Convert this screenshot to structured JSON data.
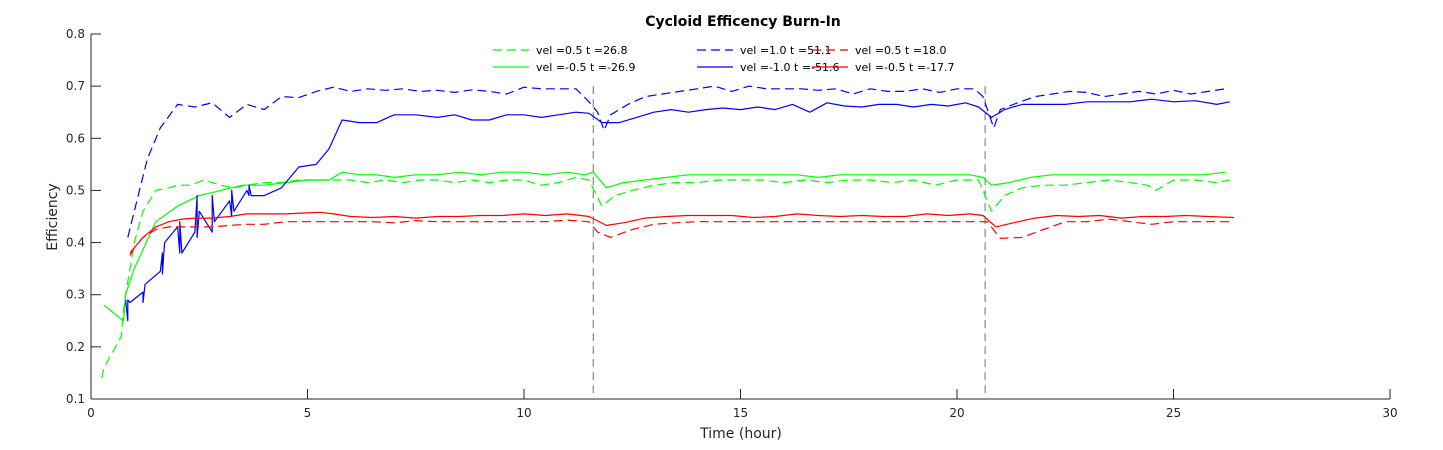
{
  "chart_data": {
    "type": "line",
    "title": "Cycloid Efficency Burn-In",
    "xlabel": "Time (hour)",
    "ylabel": "Efficiency",
    "xlim": [
      0,
      30
    ],
    "ylim": [
      0.1,
      0.8
    ],
    "xticks": [
      0,
      5,
      10,
      15,
      20,
      25,
      30
    ],
    "yticks": [
      0.1,
      0.2,
      0.3,
      0.4,
      0.5,
      0.6,
      0.7,
      0.8
    ],
    "xtick_labels": [
      "0",
      "5",
      "10",
      "15",
      "20",
      "25",
      "30"
    ],
    "ytick_labels": [
      "0.1",
      "0.2",
      "0.3",
      "0.4",
      "0.5",
      "0.6",
      "0.7",
      "0.8"
    ],
    "grid": false,
    "legend_position": "top-center",
    "vlines": [
      11.6,
      20.65
    ],
    "series": [
      {
        "name": "vel =0.5 t =26.8",
        "color": "#00ff00",
        "dash": "dashed",
        "x": [
          0.25,
          0.3,
          0.5,
          0.7,
          0.75,
          0.8,
          0.9,
          1.0,
          1.2,
          1.5,
          1.8,
          2.0,
          2.3,
          2.6,
          2.8,
          3.0,
          3.3,
          3.6,
          4.0,
          4.4,
          4.8,
          5.2,
          5.6,
          6.0,
          6.4,
          6.8,
          7.2,
          7.6,
          8.0,
          8.4,
          8.8,
          9.2,
          9.6,
          10.0,
          10.4,
          10.8,
          11.2,
          11.5,
          11.8,
          12.1,
          12.5,
          13.0,
          13.5,
          14.0,
          14.5,
          15.0,
          15.5,
          16.0,
          16.5,
          17.0,
          17.5,
          18.0,
          18.5,
          19.0,
          19.5,
          20.0,
          20.5,
          20.8,
          21.1,
          21.5,
          22.0,
          22.5,
          23.0,
          23.5,
          24.0,
          24.4,
          24.6,
          25.0,
          25.5,
          26.0,
          26.3
        ],
        "y": [
          0.14,
          0.16,
          0.19,
          0.22,
          0.27,
          0.3,
          0.35,
          0.4,
          0.46,
          0.5,
          0.505,
          0.51,
          0.51,
          0.52,
          0.515,
          0.51,
          0.505,
          0.51,
          0.515,
          0.515,
          0.52,
          0.52,
          0.52,
          0.52,
          0.515,
          0.52,
          0.515,
          0.52,
          0.52,
          0.515,
          0.52,
          0.515,
          0.52,
          0.52,
          0.51,
          0.515,
          0.525,
          0.52,
          0.47,
          0.49,
          0.5,
          0.51,
          0.515,
          0.515,
          0.52,
          0.52,
          0.52,
          0.515,
          0.52,
          0.515,
          0.52,
          0.52,
          0.515,
          0.52,
          0.51,
          0.52,
          0.52,
          0.46,
          0.49,
          0.505,
          0.51,
          0.51,
          0.515,
          0.52,
          0.515,
          0.51,
          0.5,
          0.52,
          0.52,
          0.515,
          0.52
        ]
      },
      {
        "name": "vel =-0.5 t =-26.9",
        "color": "#00ff00",
        "dash": "solid",
        "x": [
          0.3,
          0.75,
          0.8,
          1.0,
          1.5,
          2.0,
          2.5,
          3.0,
          3.5,
          4.0,
          4.5,
          5.0,
          5.5,
          5.8,
          6.2,
          6.6,
          7.0,
          7.5,
          8.0,
          8.5,
          9.0,
          9.5,
          10.0,
          10.5,
          11.0,
          11.4,
          11.6,
          11.9,
          12.3,
          12.8,
          13.3,
          13.8,
          14.3,
          14.8,
          15.3,
          15.8,
          16.3,
          16.8,
          17.3,
          17.8,
          18.3,
          18.8,
          19.3,
          19.8,
          20.3,
          20.6,
          20.8,
          21.2,
          21.7,
          22.2,
          22.7,
          23.2,
          23.7,
          24.2,
          24.7,
          25.2,
          25.7,
          26.2
        ],
        "y": [
          0.28,
          0.25,
          0.3,
          0.35,
          0.44,
          0.47,
          0.49,
          0.5,
          0.51,
          0.51,
          0.515,
          0.52,
          0.52,
          0.535,
          0.53,
          0.53,
          0.525,
          0.53,
          0.53,
          0.535,
          0.53,
          0.535,
          0.535,
          0.53,
          0.535,
          0.53,
          0.535,
          0.505,
          0.515,
          0.52,
          0.525,
          0.53,
          0.53,
          0.53,
          0.53,
          0.53,
          0.53,
          0.525,
          0.53,
          0.53,
          0.53,
          0.53,
          0.53,
          0.53,
          0.53,
          0.525,
          0.51,
          0.515,
          0.525,
          0.53,
          0.53,
          0.53,
          0.53,
          0.53,
          0.53,
          0.53,
          0.53,
          0.535
        ]
      },
      {
        "name": "vel =1.0 t =51.1",
        "color": "#0000ff",
        "dash": "dashed",
        "x": [
          0.85,
          1.0,
          1.3,
          1.6,
          2.0,
          2.4,
          2.8,
          3.2,
          3.6,
          4.0,
          4.4,
          4.8,
          5.2,
          5.6,
          6.0,
          6.4,
          6.8,
          7.2,
          7.6,
          8.0,
          8.4,
          8.8,
          9.2,
          9.6,
          10.0,
          10.4,
          10.8,
          11.2,
          11.5,
          11.7,
          11.85,
          12.0,
          12.4,
          12.8,
          13.2,
          13.6,
          14.0,
          14.4,
          14.8,
          15.2,
          15.6,
          16.0,
          16.4,
          16.8,
          17.2,
          17.6,
          18.0,
          18.4,
          18.8,
          19.2,
          19.6,
          20.0,
          20.4,
          20.6,
          20.85,
          21.0,
          21.4,
          21.8,
          22.2,
          22.6,
          23.0,
          23.4,
          23.8,
          24.2,
          24.6,
          25.0,
          25.4,
          25.8,
          26.2
        ],
        "y": [
          0.41,
          0.46,
          0.56,
          0.62,
          0.665,
          0.66,
          0.668,
          0.64,
          0.665,
          0.655,
          0.68,
          0.678,
          0.69,
          0.698,
          0.69,
          0.695,
          0.692,
          0.695,
          0.69,
          0.692,
          0.688,
          0.693,
          0.69,
          0.685,
          0.698,
          0.695,
          0.695,
          0.695,
          0.67,
          0.65,
          0.615,
          0.645,
          0.665,
          0.68,
          0.685,
          0.69,
          0.695,
          0.7,
          0.69,
          0.7,
          0.695,
          0.695,
          0.695,
          0.692,
          0.695,
          0.685,
          0.695,
          0.69,
          0.69,
          0.695,
          0.688,
          0.695,
          0.695,
          0.68,
          0.62,
          0.655,
          0.668,
          0.68,
          0.685,
          0.69,
          0.688,
          0.68,
          0.685,
          0.69,
          0.685,
          0.692,
          0.685,
          0.69,
          0.695
        ]
      },
      {
        "name": "vel =-1.0 t =-51.6",
        "color": "#0000ff",
        "dash": "solid",
        "x": [
          0.8,
          0.85,
          0.85,
          0.9,
          1.2,
          1.2,
          1.25,
          1.6,
          1.65,
          1.65,
          1.7,
          2.0,
          2.05,
          2.05,
          2.1,
          2.4,
          2.45,
          2.45,
          2.5,
          2.8,
          2.8,
          2.85,
          3.2,
          3.25,
          3.25,
          3.3,
          3.6,
          3.65,
          3.65,
          3.7,
          4.0,
          4.4,
          4.8,
          5.2,
          5.5,
          5.8,
          6.2,
          6.6,
          7.0,
          7.5,
          8.0,
          8.4,
          8.8,
          9.2,
          9.6,
          10.0,
          10.4,
          10.8,
          11.2,
          11.5,
          11.8,
          12.2,
          12.6,
          13.0,
          13.4,
          13.8,
          14.2,
          14.6,
          15.0,
          15.4,
          15.8,
          16.2,
          16.6,
          17.0,
          17.4,
          17.8,
          18.2,
          18.6,
          19.0,
          19.4,
          19.8,
          20.2,
          20.5,
          20.8,
          21.1,
          21.5,
          22.0,
          22.5,
          23.0,
          23.5,
          24.0,
          24.5,
          25.0,
          25.5,
          26.0,
          26.3
        ],
        "y": [
          0.29,
          0.25,
          0.29,
          0.285,
          0.305,
          0.285,
          0.32,
          0.345,
          0.38,
          0.34,
          0.4,
          0.43,
          0.38,
          0.44,
          0.38,
          0.42,
          0.49,
          0.41,
          0.46,
          0.42,
          0.49,
          0.44,
          0.48,
          0.45,
          0.5,
          0.46,
          0.5,
          0.49,
          0.51,
          0.49,
          0.49,
          0.505,
          0.545,
          0.55,
          0.58,
          0.635,
          0.63,
          0.63,
          0.645,
          0.645,
          0.64,
          0.645,
          0.635,
          0.635,
          0.645,
          0.645,
          0.64,
          0.645,
          0.65,
          0.648,
          0.63,
          0.63,
          0.64,
          0.65,
          0.655,
          0.65,
          0.655,
          0.658,
          0.655,
          0.66,
          0.655,
          0.665,
          0.65,
          0.668,
          0.662,
          0.66,
          0.665,
          0.665,
          0.66,
          0.665,
          0.662,
          0.668,
          0.66,
          0.64,
          0.655,
          0.665,
          0.665,
          0.665,
          0.67,
          0.67,
          0.67,
          0.675,
          0.67,
          0.672,
          0.665,
          0.67
        ]
      },
      {
        "name": "vel =0.5 t =18.0",
        "color": "#ff0000",
        "dash": "dashed",
        "x": [
          0.9,
          1.0,
          1.2,
          1.5,
          1.8,
          2.1,
          2.4,
          2.8,
          3.2,
          3.6,
          4.0,
          4.5,
          5.0,
          5.5,
          6.0,
          6.5,
          7.0,
          7.5,
          8.0,
          8.5,
          9.0,
          9.5,
          10.0,
          10.5,
          11.0,
          11.5,
          11.7,
          12.0,
          12.5,
          13.0,
          13.5,
          14.0,
          14.5,
          15.0,
          15.5,
          16.0,
          16.5,
          17.0,
          17.5,
          18.0,
          18.5,
          19.0,
          19.5,
          20.0,
          20.5,
          20.7,
          21.0,
          21.5,
          22.0,
          22.5,
          23.0,
          23.5,
          24.0,
          24.5,
          25.0,
          25.5,
          26.0,
          26.3
        ],
        "y": [
          0.38,
          0.39,
          0.41,
          0.425,
          0.43,
          0.43,
          0.43,
          0.43,
          0.433,
          0.435,
          0.435,
          0.44,
          0.44,
          0.44,
          0.44,
          0.44,
          0.438,
          0.442,
          0.44,
          0.44,
          0.44,
          0.44,
          0.44,
          0.44,
          0.443,
          0.44,
          0.42,
          0.41,
          0.425,
          0.435,
          0.438,
          0.44,
          0.44,
          0.44,
          0.44,
          0.44,
          0.44,
          0.44,
          0.44,
          0.44,
          0.44,
          0.44,
          0.44,
          0.44,
          0.44,
          0.44,
          0.408,
          0.41,
          0.425,
          0.44,
          0.44,
          0.445,
          0.44,
          0.435,
          0.44,
          0.44,
          0.44,
          0.44
        ]
      },
      {
        "name": "vel =-0.5 t =-17.7",
        "color": "#ff0000",
        "dash": "solid",
        "x": [
          0.9,
          1.0,
          1.2,
          1.5,
          1.8,
          2.1,
          2.4,
          2.8,
          3.2,
          3.6,
          4.0,
          4.5,
          5.0,
          5.3,
          5.6,
          6.0,
          6.5,
          7.0,
          7.5,
          8.0,
          8.5,
          9.0,
          9.5,
          10.0,
          10.5,
          11.0,
          11.5,
          11.9,
          12.3,
          12.8,
          13.3,
          13.8,
          14.3,
          14.8,
          15.3,
          15.8,
          16.3,
          16.8,
          17.3,
          17.8,
          18.3,
          18.8,
          19.3,
          19.8,
          20.3,
          20.6,
          20.9,
          21.3,
          21.8,
          22.3,
          22.8,
          23.3,
          23.8,
          24.3,
          24.8,
          25.3,
          25.8,
          26.4
        ],
        "y": [
          0.375,
          0.39,
          0.41,
          0.43,
          0.44,
          0.445,
          0.447,
          0.447,
          0.45,
          0.455,
          0.455,
          0.455,
          0.457,
          0.458,
          0.455,
          0.45,
          0.448,
          0.45,
          0.447,
          0.45,
          0.45,
          0.452,
          0.452,
          0.455,
          0.452,
          0.455,
          0.45,
          0.433,
          0.438,
          0.447,
          0.45,
          0.452,
          0.452,
          0.452,
          0.448,
          0.45,
          0.455,
          0.452,
          0.45,
          0.452,
          0.45,
          0.45,
          0.455,
          0.452,
          0.455,
          0.452,
          0.43,
          0.438,
          0.447,
          0.452,
          0.45,
          0.452,
          0.447,
          0.45,
          0.45,
          0.452,
          0.45,
          0.448
        ]
      }
    ]
  }
}
